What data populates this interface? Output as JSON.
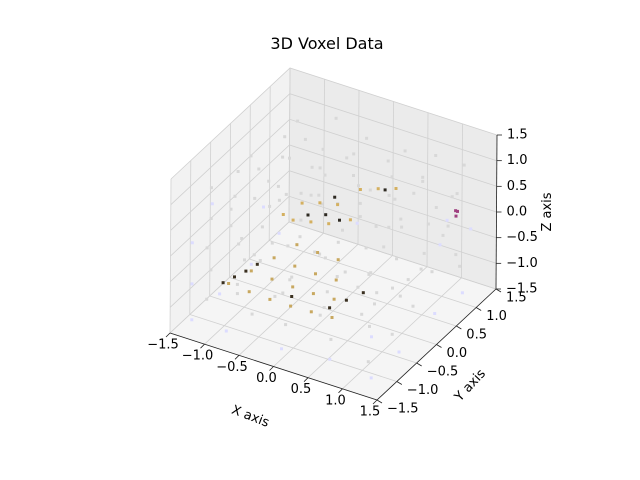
{
  "chart_data": {
    "type": "scatter",
    "projection": "3d",
    "title": "3D Voxel Data",
    "xlabel": "X axis",
    "ylabel": "Y axis",
    "zlabel": "Z axis",
    "xlim": [
      -1.5,
      1.5
    ],
    "ylim": [
      -1.5,
      1.5
    ],
    "zlim": [
      -1.5,
      1.5
    ],
    "xticks": [
      -1.5,
      -1.0,
      -0.5,
      0.0,
      0.5,
      1.0,
      1.5
    ],
    "yticks": [
      -1.5,
      -1.0,
      -0.5,
      0.0,
      0.5,
      1.0,
      1.5
    ],
    "zticks": [
      -1.5,
      -1.0,
      -0.5,
      0.0,
      0.5,
      1.0,
      1.5
    ],
    "xtick_labels": [
      "−1.5",
      "−1.0",
      "−0.5",
      "0.0",
      "0.5",
      "1.0",
      "1.5"
    ],
    "ytick_labels": [
      "−1.5",
      "−1.0",
      "−0.5",
      "0.0",
      "0.5",
      "1.0",
      "1.5"
    ],
    "ztick_labels": [
      "−1.5",
      "−1.0",
      "−0.5",
      "0.0",
      "0.5",
      "1.0",
      "1.5"
    ],
    "grid": true,
    "series": [
      {
        "description": "dense voxel cloud filling a cube",
        "color": "#d8d8d8",
        "x_range": [
          -1.3,
          1.3
        ],
        "y_range": [
          -1.3,
          1.3
        ],
        "z_range": [
          -1.3,
          1.3
        ],
        "points": [
          [
            -1.2,
            -1.0,
            1.1
          ],
          [
            -0.8,
            -1.2,
            1.0
          ],
          [
            -0.3,
            -1.1,
            1.2
          ],
          [
            0.2,
            -1.2,
            0.9
          ],
          [
            0.7,
            -1.0,
            1.1
          ],
          [
            1.1,
            -1.1,
            1.0
          ],
          [
            -1.1,
            -0.5,
            1.1
          ],
          [
            -0.6,
            -0.6,
            1.2
          ],
          [
            -0.1,
            -0.4,
            1.0
          ],
          [
            0.4,
            -0.6,
            1.2
          ],
          [
            0.9,
            -0.5,
            0.9
          ],
          [
            1.2,
            -0.4,
            1.1
          ],
          [
            -1.2,
            0.0,
            1.0
          ],
          [
            -0.7,
            0.1,
            1.1
          ],
          [
            -0.2,
            0.0,
            1.2
          ],
          [
            0.3,
            0.1,
            1.0
          ],
          [
            0.8,
            0.0,
            1.1
          ],
          [
            1.1,
            0.1,
            1.2
          ],
          [
            -1.0,
            0.5,
            1.1
          ],
          [
            -0.5,
            0.6,
            1.0
          ],
          [
            0.0,
            0.5,
            1.2
          ],
          [
            0.5,
            0.6,
            0.9
          ],
          [
            1.0,
            0.5,
            1.1
          ],
          [
            -1.1,
            1.0,
            1.0
          ],
          [
            -0.6,
            1.1,
            1.2
          ],
          [
            -0.1,
            1.0,
            1.1
          ],
          [
            0.4,
            1.1,
            1.0
          ],
          [
            0.9,
            1.0,
            1.2
          ],
          [
            1.2,
            1.2,
            1.0
          ],
          [
            -1.2,
            -1.0,
            0.5
          ],
          [
            -0.7,
            -1.1,
            0.4
          ],
          [
            -0.2,
            -1.2,
            0.6
          ],
          [
            0.3,
            -1.0,
            0.5
          ],
          [
            0.8,
            -1.1,
            0.4
          ],
          [
            1.2,
            -1.2,
            0.6
          ],
          [
            -1.2,
            -0.4,
            0.5
          ],
          [
            1.2,
            -0.5,
            0.4
          ],
          [
            -1.2,
            0.2,
            0.6
          ],
          [
            1.2,
            0.3,
            0.5
          ],
          [
            -1.2,
            0.8,
            0.4
          ],
          [
            1.2,
            0.9,
            0.6
          ],
          [
            -1.1,
            1.2,
            0.5
          ],
          [
            -0.5,
            1.2,
            0.4
          ],
          [
            0.1,
            1.2,
            0.6
          ],
          [
            0.6,
            1.2,
            0.5
          ],
          [
            1.1,
            1.2,
            0.4
          ],
          [
            -1.2,
            -1.1,
            0.0
          ],
          [
            -0.6,
            -1.2,
            0.1
          ],
          [
            0.0,
            -1.1,
            -0.1
          ],
          [
            0.6,
            -1.2,
            0.0
          ],
          [
            1.2,
            -1.0,
            0.1
          ],
          [
            -1.2,
            -0.5,
            0.0
          ],
          [
            1.2,
            -0.6,
            -0.1
          ],
          [
            -1.2,
            0.1,
            0.1
          ],
          [
            1.2,
            0.2,
            0.0
          ],
          [
            -1.2,
            0.7,
            -0.1
          ],
          [
            1.2,
            0.8,
            0.1
          ],
          [
            -1.0,
            1.2,
            0.0
          ],
          [
            -0.4,
            1.2,
            0.1
          ],
          [
            0.2,
            1.2,
            -0.1
          ],
          [
            0.8,
            1.2,
            0.0
          ],
          [
            -1.2,
            -1.0,
            -0.5
          ],
          [
            -0.7,
            -1.2,
            -0.6
          ],
          [
            -0.1,
            -1.1,
            -0.4
          ],
          [
            0.5,
            -1.2,
            -0.5
          ],
          [
            1.1,
            -1.0,
            -0.6
          ],
          [
            -1.2,
            -0.3,
            -0.5
          ],
          [
            1.2,
            -0.4,
            -0.4
          ],
          [
            -1.2,
            0.3,
            -0.6
          ],
          [
            1.2,
            0.4,
            -0.5
          ],
          [
            -1.2,
            0.9,
            -0.4
          ],
          [
            1.2,
            1.0,
            -0.6
          ],
          [
            -0.9,
            1.2,
            -0.5
          ],
          [
            -0.3,
            1.2,
            -0.4
          ],
          [
            0.3,
            1.2,
            -0.6
          ],
          [
            0.9,
            1.2,
            -0.5
          ],
          [
            -1.2,
            -1.1,
            -1.0
          ],
          [
            -0.6,
            -1.0,
            -1.1
          ],
          [
            0.0,
            -1.2,
            -0.9
          ],
          [
            0.6,
            -1.1,
            -1.0
          ],
          [
            1.2,
            -1.2,
            -1.1
          ],
          [
            -1.1,
            -0.5,
            -1.1
          ],
          [
            -0.5,
            -0.6,
            -1.0
          ],
          [
            0.1,
            -0.4,
            -1.1
          ],
          [
            0.7,
            -0.5,
            -0.9
          ],
          [
            1.2,
            -0.6,
            -1.0
          ],
          [
            -1.2,
            0.1,
            -1.0
          ],
          [
            -0.6,
            0.0,
            -1.1
          ],
          [
            0.0,
            0.1,
            -0.9
          ],
          [
            0.6,
            0.0,
            -1.1
          ],
          [
            1.1,
            0.1,
            -1.0
          ],
          [
            -1.0,
            0.6,
            -1.1
          ],
          [
            -0.4,
            0.5,
            -1.0
          ],
          [
            0.2,
            0.6,
            -1.1
          ],
          [
            0.8,
            0.5,
            -0.9
          ],
          [
            -1.1,
            1.1,
            -1.0
          ],
          [
            -0.5,
            1.0,
            -1.1
          ],
          [
            0.1,
            1.1,
            -1.0
          ],
          [
            0.7,
            1.0,
            -1.1
          ],
          [
            1.2,
            1.1,
            -0.9
          ],
          [
            -0.5,
            -0.5,
            0.8
          ],
          [
            0.0,
            -0.3,
            0.8
          ],
          [
            0.5,
            -0.2,
            0.7
          ],
          [
            -0.3,
            0.3,
            0.8
          ],
          [
            0.3,
            0.4,
            0.7
          ],
          [
            -0.6,
            -0.8,
            -0.2
          ],
          [
            0.2,
            -0.7,
            0.2
          ],
          [
            0.7,
            -0.6,
            -0.3
          ],
          [
            -0.7,
            0.4,
            0.2
          ],
          [
            0.4,
            0.7,
            -0.2
          ]
        ]
      },
      {
        "description": "light lavender voxels near the outer shell",
        "color": "#dcdcff",
        "points": [
          [
            -1.3,
            -1.3,
            -1.3
          ],
          [
            -1.3,
            -0.6,
            -1.3
          ],
          [
            -1.3,
            0.2,
            -1.3
          ],
          [
            -1.3,
            0.9,
            -1.2
          ],
          [
            -0.8,
            -1.3,
            -1.3
          ],
          [
            0.0,
            -1.3,
            -1.3
          ],
          [
            0.7,
            -1.3,
            -1.2
          ],
          [
            1.3,
            -1.3,
            -1.3
          ],
          [
            1.3,
            -0.6,
            -1.3
          ],
          [
            1.3,
            0.3,
            -1.2
          ],
          [
            1.3,
            1.0,
            -1.3
          ],
          [
            -1.3,
            -1.3,
            -0.6
          ],
          [
            -1.3,
            -1.3,
            0.2
          ],
          [
            -1.3,
            -0.8,
            0.6
          ],
          [
            -1.3,
            0.5,
            -0.4
          ],
          [
            1.3,
            -1.3,
            -0.5
          ],
          [
            1.3,
            0.6,
            0.4
          ],
          [
            1.3,
            1.2,
            -0.2
          ],
          [
            0.8,
            1.3,
            -0.8
          ],
          [
            -0.4,
            1.3,
            -0.9
          ]
        ]
      },
      {
        "description": "dark/tan voxel band on the lower surface",
        "color": "#c8a860",
        "points": [
          [
            -1.0,
            -0.9,
            -0.75
          ],
          [
            -0.7,
            -0.9,
            -0.78
          ],
          [
            -0.4,
            -0.9,
            -0.8
          ],
          [
            -0.1,
            -0.9,
            -0.8
          ],
          [
            0.2,
            -0.9,
            -0.78
          ],
          [
            0.5,
            -0.9,
            -0.76
          ],
          [
            -0.9,
            -0.5,
            -0.75
          ],
          [
            -0.6,
            -0.5,
            -0.78
          ],
          [
            -0.3,
            -0.5,
            -0.8
          ],
          [
            0.0,
            -0.5,
            -0.8
          ],
          [
            0.3,
            -0.5,
            -0.78
          ],
          [
            -0.8,
            -0.1,
            -0.74
          ],
          [
            -0.5,
            -0.1,
            -0.77
          ],
          [
            -0.2,
            -0.1,
            -0.79
          ],
          [
            0.1,
            -0.1,
            -0.78
          ],
          [
            -0.7,
            0.3,
            -0.73
          ],
          [
            -0.4,
            0.3,
            -0.75
          ],
          [
            -0.1,
            0.3,
            -0.76
          ]
        ]
      },
      {
        "description": "dark voxels on the lower surface edge",
        "color": "#3a3020",
        "points": [
          [
            -1.05,
            -0.95,
            -0.72
          ],
          [
            -1.0,
            -0.75,
            -0.73
          ],
          [
            -0.95,
            -0.55,
            -0.74
          ],
          [
            -0.9,
            -0.35,
            -0.73
          ],
          [
            0.35,
            -0.7,
            -0.78
          ],
          [
            0.45,
            -0.45,
            -0.77
          ],
          [
            0.55,
            -0.2,
            -0.76
          ],
          [
            -0.2,
            -0.7,
            -0.8
          ]
        ]
      },
      {
        "description": "tan/dark voxels on the upper surface",
        "color": "#d4b060",
        "points": [
          [
            -0.5,
            -0.4,
            0.45
          ],
          [
            -0.3,
            -0.5,
            0.5
          ],
          [
            -0.1,
            -0.4,
            0.48
          ],
          [
            0.1,
            -0.3,
            0.46
          ],
          [
            -0.4,
            -0.1,
            0.5
          ],
          [
            -0.2,
            0.0,
            0.52
          ],
          [
            0.0,
            0.1,
            0.5
          ],
          [
            0.3,
            -0.1,
            0.48
          ],
          [
            0.1,
            0.5,
            0.55
          ],
          [
            0.3,
            0.6,
            0.58
          ],
          [
            0.5,
            0.7,
            0.6
          ]
        ]
      },
      {
        "description": "dark voxels on the upper surface",
        "color": "#2e2a22",
        "points": [
          [
            -0.2,
            -0.3,
            0.5
          ],
          [
            0.0,
            -0.2,
            0.52
          ],
          [
            0.2,
            -0.2,
            0.5
          ],
          [
            -0.1,
            0.2,
            0.53
          ],
          [
            0.4,
            0.6,
            0.6
          ]
        ]
      },
      {
        "description": "small purple voxel cluster on the right side",
        "color": "#a04080",
        "points": [
          [
            1.25,
            0.9,
            0.35
          ],
          [
            1.25,
            0.95,
            0.3
          ],
          [
            1.2,
            1.0,
            0.15
          ]
        ]
      }
    ]
  }
}
